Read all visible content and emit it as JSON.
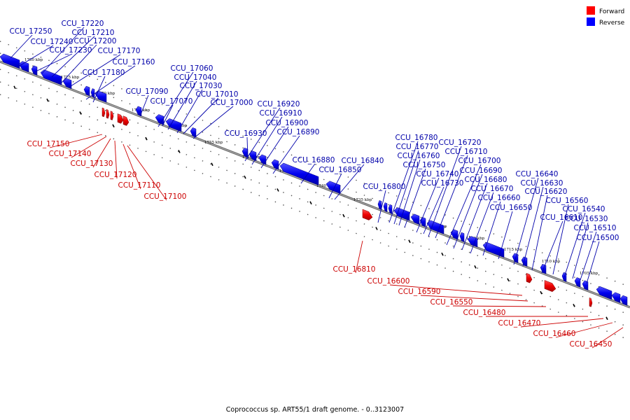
{
  "caption": "Coprococcus sp. ART55/1 draft genome. - 0..3123007",
  "legend": [
    {
      "label": "Forward",
      "color": "#ff0000"
    },
    {
      "label": "Reverse",
      "color": "#0000ff"
    }
  ],
  "ticks": [
    "1780 kbp",
    "1775 kbp",
    "1770 kbp",
    "1765 kbp",
    "1760 kbp",
    "1755 kbp",
    "1750 kbp",
    "1745 kbp",
    "1740 kbp",
    "1735 kbp",
    "1730 kbp",
    "1725 kbp",
    "1720 kbp",
    "1715 kbp",
    "1710 kbp",
    "1705 kbp"
  ],
  "reverse_labels": [
    "CCU_17250",
    "CCU_17240",
    "CCU_17230",
    "CCU_17220",
    "CCU_17210",
    "CCU_17200",
    "CCU_17170",
    "CCU_17160",
    "CCU_17180",
    "CCU_17090",
    "CCU_17060",
    "CCU_17040",
    "CCU_17030",
    "CCU_17070",
    "CCU_17010",
    "CCU_17000",
    "CCU_16920",
    "CCU_16910",
    "CCU_16900",
    "CCU_16930",
    "CCU_16890",
    "CCU_16880",
    "CCU_16850",
    "CCU_16840",
    "CCU_16800",
    "CCU_16780",
    "CCU_16770",
    "CCU_16760",
    "CCU_16750",
    "CCU_16740",
    "CCU_16730",
    "CCU_16720",
    "CCU_16710",
    "CCU_16700",
    "CCU_16690",
    "CCU_16680",
    "CCU_16670",
    "CCU_16660",
    "CCU_16650",
    "CCU_16640",
    "CCU_16630",
    "CCU_16620",
    "CCU_16610",
    "CCU_16560",
    "CCU_16540",
    "CCU_16530",
    "CCU_16510",
    "CCU_16500"
  ],
  "forward_labels": [
    "CCU_17150",
    "CCU_17140",
    "CCU_17130",
    "CCU_17120",
    "CCU_17110",
    "CCU_17100",
    "CCU_16810",
    "CCU_16600",
    "CCU_16590",
    "CCU_16550",
    "CCU_16480",
    "CCU_16470",
    "CCU_16460",
    "CCU_16450"
  ]
}
